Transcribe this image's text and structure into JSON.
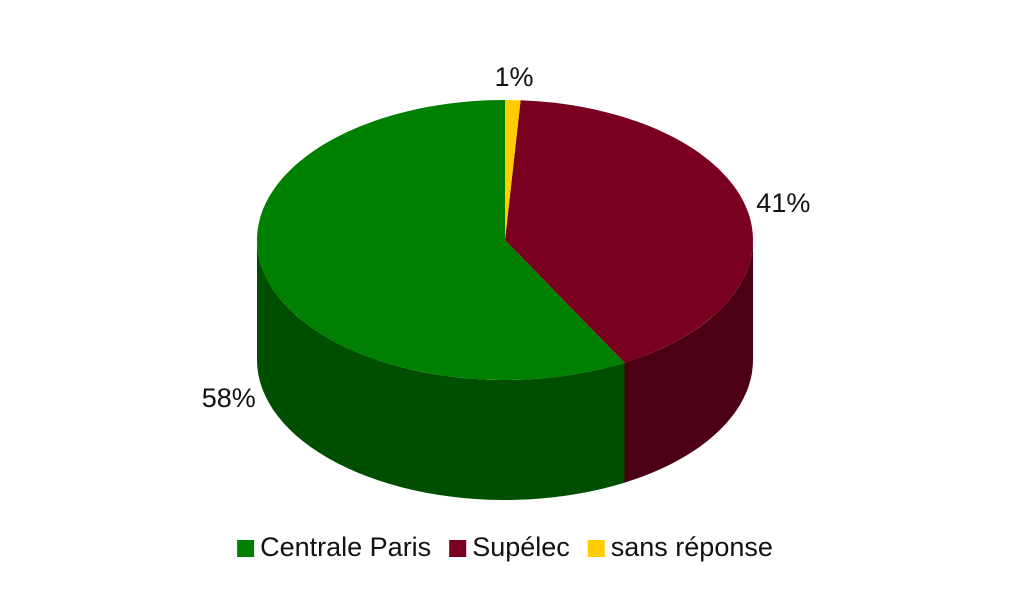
{
  "chart_data": {
    "type": "pie",
    "categories": [
      "Centrale Paris",
      "Supélec",
      "sans réponse"
    ],
    "values": [
      58,
      41,
      1
    ],
    "value_labels": [
      "58%",
      "41%",
      "1%"
    ],
    "colors": [
      "#008000",
      "#7a0020",
      "#ffcc00"
    ],
    "legend": "bottom"
  }
}
